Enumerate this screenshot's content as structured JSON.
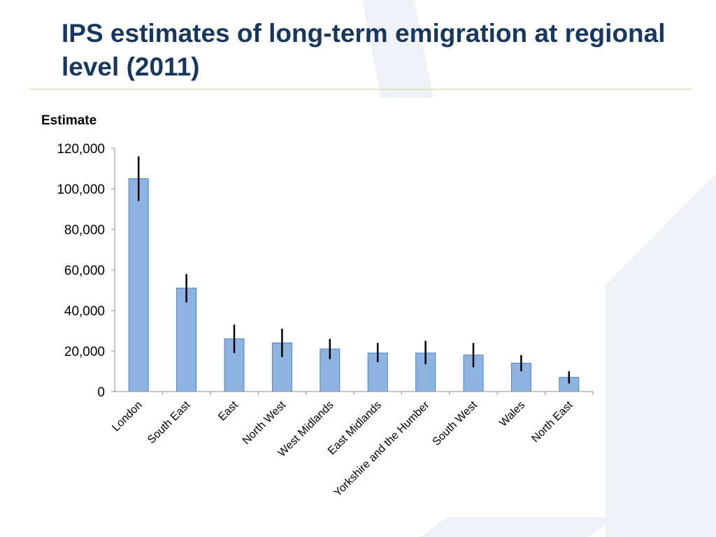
{
  "slide": {
    "title": "IPS estimates of long-term emigration at regional level (2011)"
  },
  "colors": {
    "title": "#17375e",
    "bar_fill": "#8db3e2",
    "bar_stroke": "#4f81bd",
    "error_bar": "#000000",
    "rule": "#c9cf9a",
    "background_shape": "#e9edf3"
  },
  "chart_data": {
    "type": "bar",
    "title": "",
    "ylabel": "Estimate",
    "xlabel": "",
    "ylim": [
      0,
      120000
    ],
    "yticks": [
      0,
      20000,
      40000,
      60000,
      80000,
      100000,
      120000
    ],
    "ytick_labels": [
      "0",
      "20,000",
      "40,000",
      "60,000",
      "80,000",
      "100,000",
      "120,000"
    ],
    "grid": false,
    "legend": "none",
    "categories": [
      "London",
      "South East",
      "East",
      "North West",
      "West Midlands",
      "East Midlands",
      "Yorkshire and the Humber",
      "South West",
      "Wales",
      "North East"
    ],
    "values": [
      105000,
      51000,
      26000,
      24000,
      21000,
      19000,
      19000,
      18000,
      14000,
      7000
    ],
    "error_low": [
      94000,
      44000,
      19000,
      17000,
      16000,
      14500,
      13500,
      12000,
      10000,
      4000
    ],
    "error_high": [
      116000,
      58000,
      33000,
      31000,
      26000,
      24000,
      25000,
      24000,
      18000,
      10000
    ]
  }
}
